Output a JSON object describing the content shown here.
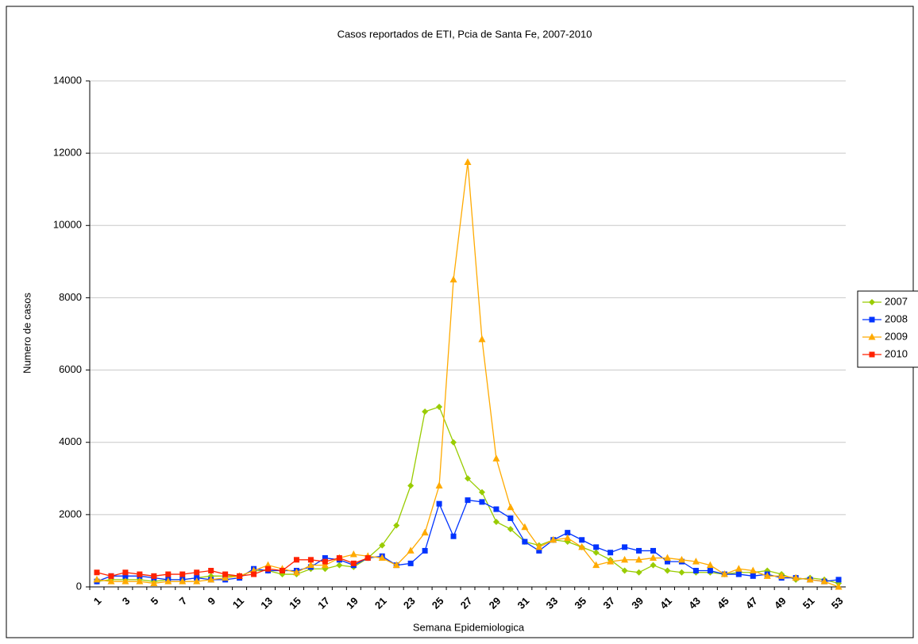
{
  "chart_data": {
    "type": "line",
    "title": "Casos reportados de ETI, Pcia de Santa Fe, 2007-2010",
    "x_label": "Semana Epidemiologica",
    "y_label": "Numero de casos",
    "categories": [
      "1",
      null,
      "3",
      null,
      "5",
      null,
      "7",
      null,
      "9",
      null,
      "11",
      null,
      "13",
      null,
      "15",
      null,
      "17",
      null,
      "19",
      null,
      "21",
      null,
      "23",
      null,
      "25",
      null,
      "27",
      null,
      "29",
      null,
      "31",
      null,
      "33",
      null,
      "35",
      null,
      "37",
      null,
      "39",
      null,
      "41",
      null,
      "43",
      null,
      "45",
      null,
      "47",
      null,
      "49",
      null,
      "51",
      null,
      "53"
    ],
    "ylim": [
      0,
      14000
    ],
    "yticks": [
      0,
      2000,
      4000,
      6000,
      8000,
      10000,
      12000,
      14000
    ],
    "grid": true,
    "legend": "right",
    "series": [
      {
        "name": "2007",
        "color": "#99cc00",
        "marker": "diamond",
        "values": [
          150,
          200,
          200,
          200,
          150,
          200,
          200,
          250,
          300,
          300,
          300,
          450,
          450,
          350,
          350,
          500,
          500,
          600,
          550,
          800,
          1150,
          1700,
          2800,
          4850,
          4980,
          4000,
          3000,
          2620,
          1800,
          1600,
          1250,
          1150,
          1300,
          1250,
          1100,
          950,
          750,
          450,
          400,
          600,
          450,
          400,
          400,
          400,
          350,
          400,
          400,
          450,
          350,
          200,
          250,
          200,
          100
        ]
      },
      {
        "name": "2008",
        "color": "#0033ff",
        "marker": "square",
        "values": [
          150,
          300,
          300,
          300,
          250,
          200,
          200,
          250,
          200,
          200,
          250,
          500,
          450,
          450,
          450,
          550,
          800,
          750,
          600,
          800,
          850,
          600,
          650,
          1000,
          2300,
          1400,
          2400,
          2350,
          2150,
          1900,
          1250,
          1000,
          1300,
          1500,
          1300,
          1100,
          950,
          1100,
          1000,
          1000,
          700,
          700,
          450,
          450,
          350,
          350,
          300,
          350,
          250,
          250,
          200,
          150,
          200
        ]
      },
      {
        "name": "2009",
        "color": "#ffaa00",
        "marker": "triangle",
        "values": [
          200,
          150,
          150,
          150,
          100,
          150,
          150,
          150,
          200,
          250,
          300,
          450,
          600,
          500,
          400,
          600,
          600,
          800,
          900,
          850,
          800,
          600,
          1000,
          1500,
          2800,
          8500,
          11750,
          6850,
          3550,
          2200,
          1650,
          1100,
          1300,
          1350,
          1100,
          600,
          700,
          750,
          750,
          800,
          800,
          750,
          700,
          600,
          350,
          500,
          450,
          300,
          300,
          250,
          200,
          150,
          0
        ]
      },
      {
        "name": "2010",
        "color": "#ff2200",
        "marker": "square",
        "values": [
          400,
          300,
          400,
          350,
          300,
          350,
          350,
          400,
          450,
          350,
          300,
          350,
          500,
          450,
          750,
          750,
          700,
          800,
          650,
          800,
          null,
          null,
          null,
          null,
          null,
          null,
          null,
          null,
          null,
          null,
          null,
          null,
          null,
          null,
          null,
          null,
          null,
          null,
          null,
          null,
          null,
          null,
          null,
          null,
          null,
          null,
          null,
          null,
          null,
          null,
          null,
          null,
          null
        ]
      }
    ]
  }
}
